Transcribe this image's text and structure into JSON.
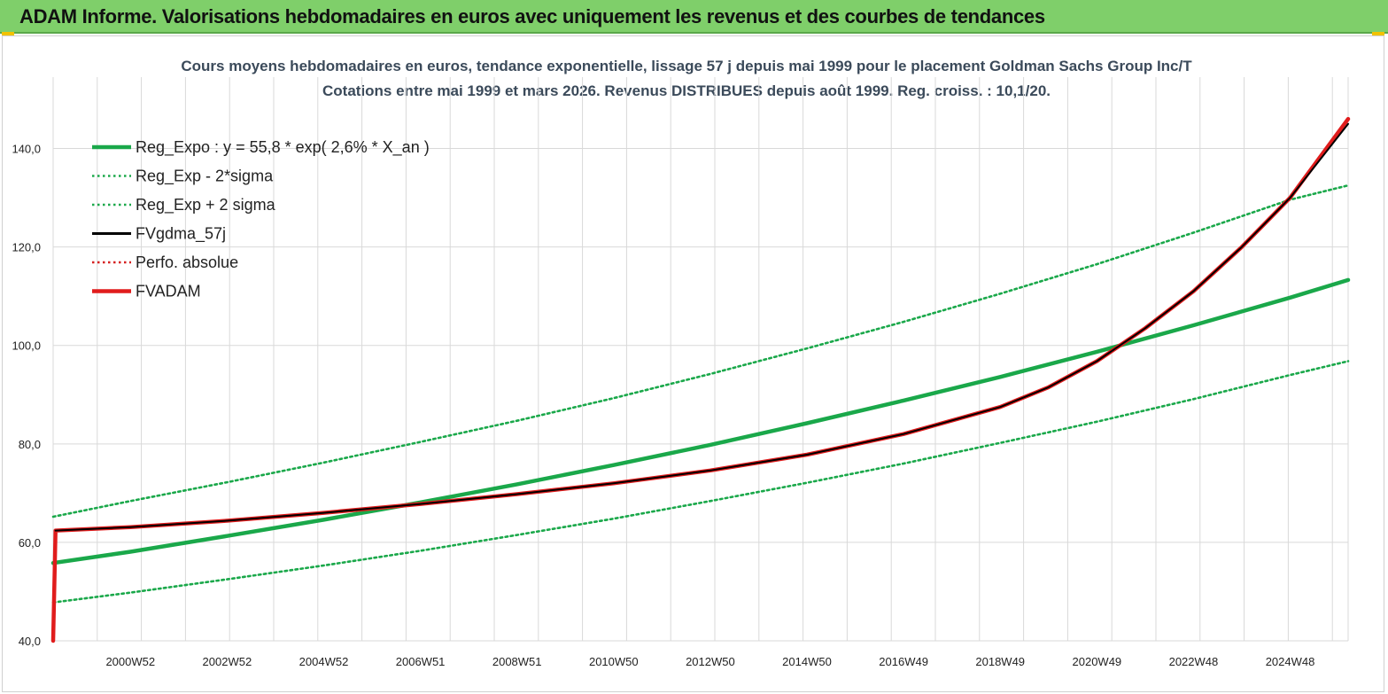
{
  "banner": {
    "title": "ADAM Informe. Valorisations hebdomadaires en euros avec uniquement les revenus et des courbes de tendances"
  },
  "chart_data": {
    "type": "line",
    "title": "Cours moyens hebdomadaires en euros, tendance exponentielle, lissage 57 j depuis mai 1999 pour le placement Goldman Sachs Group Inc/T",
    "subtitle": "Cotations entre mai 1999 et mars 2026. Revenus DISTRIBUES depuis août 1999. Reg. croiss. : 10,1/20.",
    "xlabel": "",
    "ylabel": "",
    "x_range": [
      1999.4,
      2026.2
    ],
    "ylim": [
      40,
      150
    ],
    "y_ticks": [
      "40,0",
      "60,0",
      "80,0",
      "100,0",
      "120,0",
      "140,0"
    ],
    "x_ticks": [
      "2000W52",
      "2002W52",
      "2004W52",
      "2006W51",
      "2008W51",
      "2010W50",
      "2012W50",
      "2014W50",
      "2016W49",
      "2018W49",
      "2020W49",
      "2022W48",
      "2024W48"
    ],
    "grid": true,
    "legend_position": "top-left",
    "series": [
      {
        "name": "Reg_Expo : y = 55,8 * exp( 2,6% *  X_an )",
        "color": "#1aa84a",
        "style": "solid-thick",
        "x": [
          1999.4,
          2001,
          2003,
          2005,
          2007,
          2009,
          2011,
          2013,
          2015,
          2017,
          2019,
          2021,
          2023,
          2025,
          2026.2
        ],
        "values": [
          55.8,
          58.1,
          61.3,
          64.6,
          68.1,
          71.8,
          75.7,
          79.8,
          84.2,
          88.8,
          93.6,
          98.7,
          104.1,
          109.7,
          113.3
        ]
      },
      {
        "name": "Reg_Exp - 2*sigma",
        "color": "#1aa84a",
        "style": "dotted",
        "x": [
          1999.4,
          2001,
          2003,
          2005,
          2007,
          2009,
          2011,
          2013,
          2015,
          2017,
          2019,
          2021,
          2023,
          2025,
          2026.2
        ],
        "values": [
          47.8,
          49.8,
          52.5,
          55.3,
          58.3,
          61.5,
          64.8,
          68.4,
          72.1,
          76.0,
          80.2,
          84.5,
          89.1,
          94.0,
          96.8
        ]
      },
      {
        "name": "Reg_Exp + 2 sigma",
        "color": "#1aa84a",
        "style": "dotted",
        "x": [
          1999.4,
          2001,
          2003,
          2005,
          2007,
          2009,
          2011,
          2013,
          2015,
          2017,
          2019,
          2021,
          2023,
          2025,
          2026.2
        ],
        "values": [
          65.2,
          68.4,
          72.2,
          76.2,
          80.4,
          84.7,
          89.3,
          94.2,
          99.4,
          104.8,
          110.5,
          116.5,
          122.9,
          129.6,
          132.5
        ]
      },
      {
        "name": "FVgdma_57j",
        "color": "#000000",
        "style": "solid",
        "x": [
          1999.45,
          2001,
          2003,
          2005,
          2007,
          2009,
          2011,
          2013,
          2015,
          2017,
          2019,
          2020,
          2021,
          2022,
          2023,
          2024,
          2025,
          2026.2
        ],
        "values": [
          62.4,
          63.1,
          64.4,
          66.0,
          67.8,
          69.8,
          72.0,
          74.6,
          77.8,
          82.0,
          87.5,
          91.5,
          96.8,
          103.5,
          111.0,
          120.0,
          130.0,
          145.0
        ]
      },
      {
        "name": "Perfo. absolue",
        "color": "#d62020",
        "style": "dotted",
        "x": [],
        "values": []
      },
      {
        "name": "FVADAM",
        "color": "#e01c1c",
        "style": "solid-thick",
        "x": [
          1999.4,
          1999.45,
          2001,
          2003,
          2005,
          2007,
          2009,
          2011,
          2013,
          2015,
          2017,
          2019,
          2020,
          2021,
          2022,
          2023,
          2024,
          2025,
          2026.2
        ],
        "values": [
          40.0,
          62.4,
          63.1,
          64.4,
          66.0,
          67.8,
          69.8,
          72.0,
          74.6,
          77.8,
          82.0,
          87.5,
          91.5,
          96.8,
          103.5,
          111.0,
          120.0,
          130.0,
          146.0
        ]
      }
    ]
  }
}
